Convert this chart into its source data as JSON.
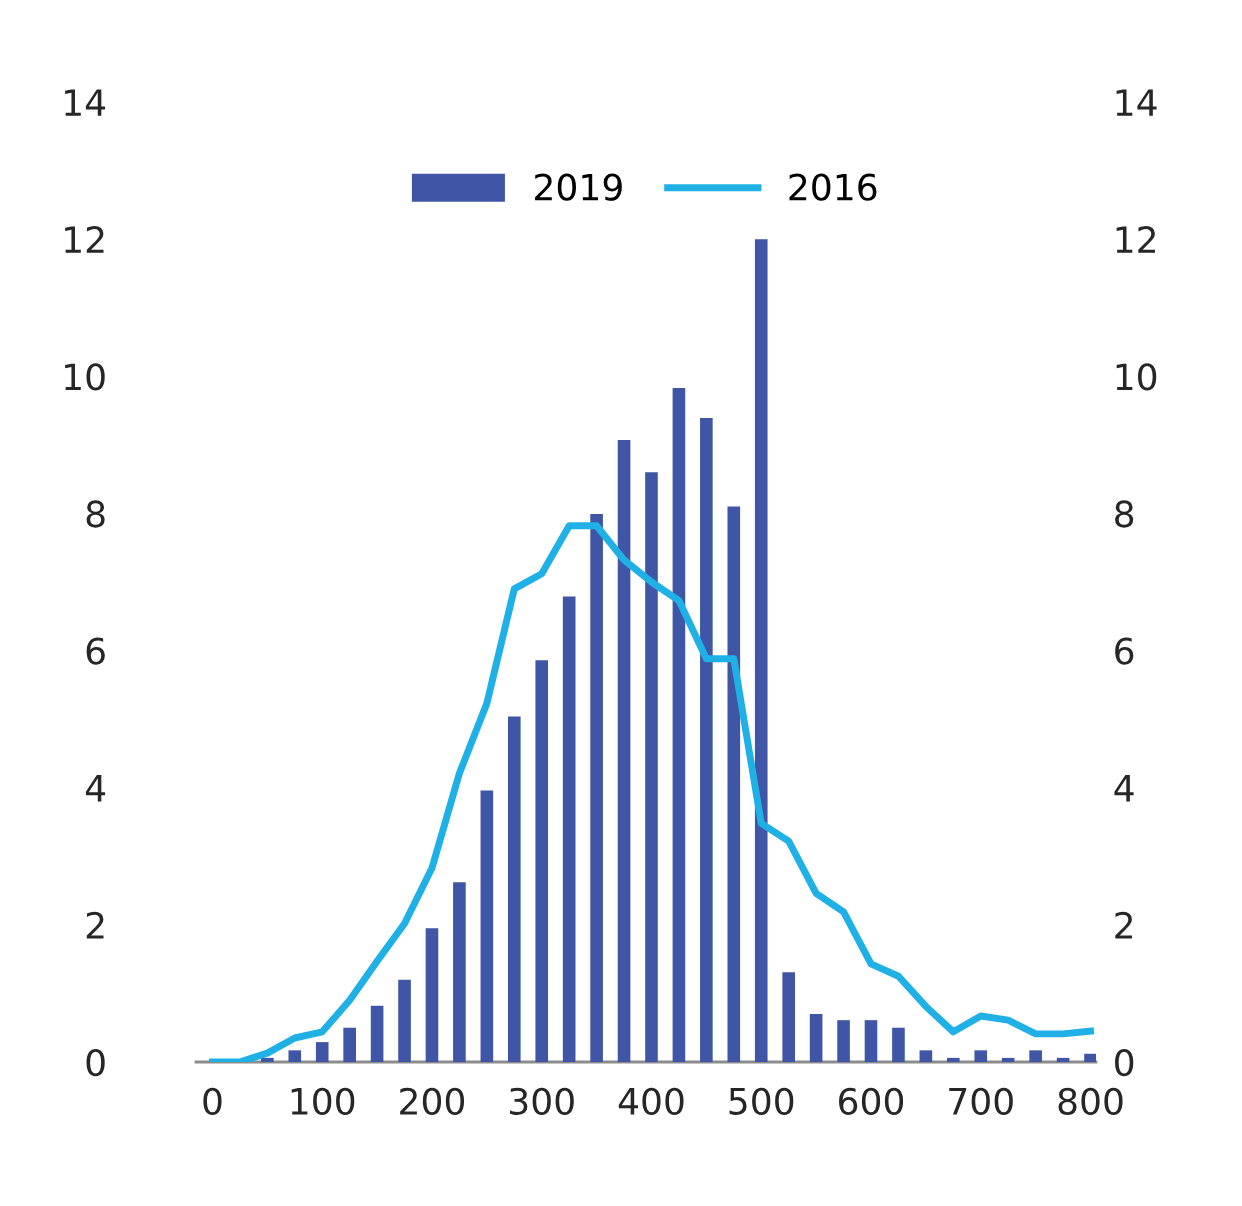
{
  "chart_data": {
    "type": "bar",
    "x": [
      0,
      25,
      50,
      75,
      100,
      125,
      150,
      175,
      200,
      225,
      250,
      275,
      300,
      325,
      350,
      375,
      400,
      425,
      450,
      475,
      500,
      525,
      550,
      575,
      600,
      625,
      650,
      675,
      700,
      725,
      750,
      775,
      800
    ],
    "series": [
      {
        "name": "2019",
        "color": "#3f55a5",
        "values": [
          0,
          0.03,
          0.06,
          0.17,
          0.29,
          0.5,
          0.82,
          1.2,
          1.95,
          2.62,
          3.96,
          5.04,
          5.86,
          6.79,
          7.99,
          9.07,
          8.6,
          9.83,
          9.39,
          8.1,
          12.0,
          1.31,
          0.7,
          0.61,
          0.61,
          0.5,
          0.17,
          0.06,
          0.17,
          0.06,
          0.17,
          0.06,
          0.12
        ]
      },
      {
        "name": "2016",
        "type": "line",
        "color": "#1fb0e6",
        "values": [
          0,
          0,
          0.13,
          0.35,
          0.44,
          0.9,
          1.47,
          2.02,
          2.83,
          4.21,
          5.23,
          6.9,
          7.12,
          7.82,
          7.82,
          7.32,
          7.0,
          6.73,
          5.88,
          5.88,
          3.48,
          3.22,
          2.46,
          2.19,
          1.43,
          1.25,
          0.81,
          0.44,
          0.67,
          0.61,
          0.41,
          0.41,
          0.45
        ]
      }
    ],
    "xlim": [
      -15,
      805
    ],
    "xticks": [
      0,
      100,
      200,
      300,
      400,
      500,
      600,
      700,
      800
    ],
    "ylim": [
      0,
      14
    ],
    "yticks": [
      0,
      2,
      4,
      6,
      8,
      10,
      12,
      14
    ],
    "y2lim": [
      0,
      14
    ],
    "y2ticks": [
      0,
      2,
      4,
      6,
      8,
      10,
      12,
      14
    ],
    "grid": false,
    "legend": "top",
    "marker": "none",
    "line_style": "solid"
  }
}
